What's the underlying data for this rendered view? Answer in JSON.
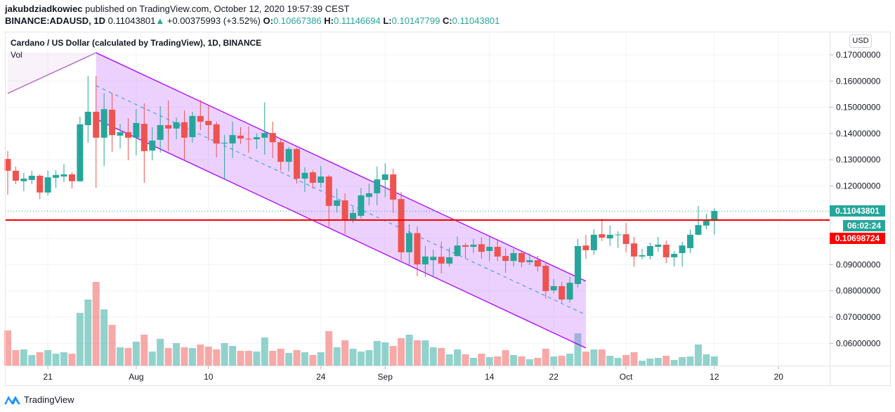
{
  "header": {
    "author": "jakubdziadkowiec",
    "published_text": "published on TradingView.com, October 12, 2020 19:57:39 CEST",
    "symbol": "BINANCE:ADAUSD, 1D",
    "last": "0.11043801",
    "change": "+0.00375993 (+3.52%)",
    "o_label": "O:",
    "o": "0.10667386",
    "h_label": "H:",
    "h": "0.11146694",
    "l_label": "L:",
    "l": "0.10147799",
    "c_label": "C:",
    "c": "0.11043801"
  },
  "legend": {
    "title": "Cardano / US Dollar (calculated by TradingView), 1D, BINANCE",
    "volume": "Vol"
  },
  "price_axis": {
    "currency": "USD",
    "last_price_label": "0.11043801",
    "countdown": "06:02:24",
    "line_price_label": "0.10698724"
  },
  "footer": {
    "brand": "TradingView"
  },
  "colors": {
    "up": "#26a69a",
    "down": "#ef5350",
    "channel": "#aa00ff",
    "hline": "#ff0000",
    "midline": "#2196f3"
  },
  "chart_data": {
    "type": "candlestick",
    "title": "Cardano / US Dollar (calculated by TradingView), 1D, BINANCE",
    "ylim": [
      0.055,
      0.175
    ],
    "y_ticks": [
      "0.17000000",
      "0.16000000",
      "0.15000000",
      "0.14000000",
      "0.13000000",
      "0.12000000",
      "0.09000000",
      "0.08000000",
      "0.07000000",
      "0.06000000"
    ],
    "y_tick_values": [
      0.17,
      0.16,
      0.15,
      0.14,
      0.13,
      0.12,
      0.09,
      0.08,
      0.07,
      0.06
    ],
    "x_ticks": [
      {
        "label": "21",
        "date": "2020-07-21"
      },
      {
        "label": "Aug",
        "date": "2020-08-01"
      },
      {
        "label": "10",
        "date": "2020-08-10"
      },
      {
        "label": "24",
        "date": "2020-08-24"
      },
      {
        "label": "Sep",
        "date": "2020-09-01"
      },
      {
        "label": "14",
        "date": "2020-09-14"
      },
      {
        "label": "22",
        "date": "2020-09-22"
      },
      {
        "label": "Oct",
        "date": "2020-10-01"
      },
      {
        "label": "12",
        "date": "2020-10-12"
      },
      {
        "label": "20",
        "date": "2020-10-20"
      }
    ],
    "grid": true,
    "volume_unit": "relative",
    "candles": [
      [
        "2020-07-16",
        0.1303,
        0.1333,
        0.1166,
        0.1258,
        50
      ],
      [
        "2020-07-17",
        0.1258,
        0.1274,
        0.1207,
        0.122,
        22
      ],
      [
        "2020-07-18",
        0.1218,
        0.125,
        0.118,
        0.1228,
        23
      ],
      [
        "2020-07-19",
        0.1223,
        0.1258,
        0.1207,
        0.1239,
        15
      ],
      [
        "2020-07-20",
        0.1239,
        0.1244,
        0.115,
        0.1175,
        19
      ],
      [
        "2020-07-21",
        0.1175,
        0.126,
        0.1164,
        0.1233,
        22
      ],
      [
        "2020-07-22",
        0.1231,
        0.126,
        0.1193,
        0.1242,
        17
      ],
      [
        "2020-07-23",
        0.1236,
        0.1284,
        0.1215,
        0.1244,
        19
      ],
      [
        "2020-07-24",
        0.1244,
        0.1252,
        0.119,
        0.1218,
        17
      ],
      [
        "2020-07-25",
        0.1218,
        0.1464,
        0.1215,
        0.1435,
        75
      ],
      [
        "2020-07-26",
        0.1432,
        0.162,
        0.1365,
        0.1483,
        94
      ],
      [
        "2020-07-27",
        0.1483,
        0.162,
        0.1193,
        0.1384,
        119
      ],
      [
        "2020-07-28",
        0.1384,
        0.1553,
        0.1276,
        0.1493,
        80
      ],
      [
        "2020-07-29",
        0.1491,
        0.1555,
        0.133,
        0.1394,
        58
      ],
      [
        "2020-07-30",
        0.1392,
        0.1437,
        0.1343,
        0.1405,
        26
      ],
      [
        "2020-07-31",
        0.1405,
        0.1459,
        0.1298,
        0.1384,
        25
      ],
      [
        "2020-08-01",
        0.1384,
        0.1494,
        0.1317,
        0.144,
        34
      ],
      [
        "2020-08-02",
        0.1437,
        0.1515,
        0.1212,
        0.1333,
        44
      ],
      [
        "2020-08-03",
        0.1335,
        0.1424,
        0.1298,
        0.1373,
        20
      ],
      [
        "2020-08-04",
        0.1376,
        0.1504,
        0.1327,
        0.1432,
        38
      ],
      [
        "2020-08-05",
        0.1432,
        0.1526,
        0.1333,
        0.1419,
        25
      ],
      [
        "2020-08-06",
        0.1419,
        0.1461,
        0.1378,
        0.1443,
        32
      ],
      [
        "2020-08-07",
        0.1443,
        0.1488,
        0.13,
        0.1384,
        26
      ],
      [
        "2020-08-08",
        0.1386,
        0.1483,
        0.1365,
        0.1467,
        25
      ],
      [
        "2020-08-09",
        0.1467,
        0.1528,
        0.1413,
        0.1445,
        30
      ],
      [
        "2020-08-10",
        0.1448,
        0.151,
        0.1373,
        0.1432,
        27
      ],
      [
        "2020-08-11",
        0.1435,
        0.1445,
        0.1309,
        0.1362,
        23
      ],
      [
        "2020-08-12",
        0.1362,
        0.1394,
        0.1225,
        0.1365,
        32
      ],
      [
        "2020-08-13",
        0.1362,
        0.1445,
        0.1306,
        0.1394,
        28
      ],
      [
        "2020-08-14",
        0.1392,
        0.1424,
        0.136,
        0.1381,
        21
      ],
      [
        "2020-08-15",
        0.138,
        0.1427,
        0.1327,
        0.1378,
        21
      ],
      [
        "2020-08-16",
        0.1378,
        0.14,
        0.1341,
        0.1386,
        20
      ],
      [
        "2020-08-17",
        0.1384,
        0.1518,
        0.1319,
        0.1402,
        40
      ],
      [
        "2020-08-18",
        0.1402,
        0.1445,
        0.1306,
        0.1367,
        21
      ],
      [
        "2020-08-19",
        0.1367,
        0.1381,
        0.1258,
        0.1292,
        24
      ],
      [
        "2020-08-20",
        0.1292,
        0.1349,
        0.1255,
        0.1341,
        18
      ],
      [
        "2020-08-21",
        0.1341,
        0.1346,
        0.1209,
        0.1228,
        22
      ],
      [
        "2020-08-22",
        0.1228,
        0.1271,
        0.1177,
        0.125,
        19
      ],
      [
        "2020-08-23",
        0.1252,
        0.126,
        0.119,
        0.1212,
        15
      ],
      [
        "2020-08-24",
        0.1212,
        0.1276,
        0.1193,
        0.1236,
        19
      ],
      [
        "2020-08-25",
        0.1236,
        0.1242,
        0.1038,
        0.1124,
        49
      ],
      [
        "2020-08-26",
        0.1124,
        0.119,
        0.1099,
        0.1145,
        26
      ],
      [
        "2020-08-27",
        0.1145,
        0.1172,
        0.1016,
        0.107,
        36
      ],
      [
        "2020-08-28",
        0.1073,
        0.1121,
        0.1059,
        0.1097,
        24
      ],
      [
        "2020-08-29",
        0.1086,
        0.1193,
        0.1075,
        0.1164,
        20
      ],
      [
        "2020-08-30",
        0.1158,
        0.1209,
        0.1126,
        0.1172,
        22
      ],
      [
        "2020-08-31",
        0.1172,
        0.1274,
        0.1126,
        0.1225,
        35
      ],
      [
        "2020-09-01",
        0.1223,
        0.1287,
        0.1158,
        0.1244,
        33
      ],
      [
        "2020-09-02",
        0.1244,
        0.1266,
        0.1097,
        0.1148,
        28
      ],
      [
        "2020-09-03",
        0.115,
        0.1177,
        0.0917,
        0.0947,
        39
      ],
      [
        "2020-09-04",
        0.0947,
        0.1054,
        0.0898,
        0.102,
        44
      ],
      [
        "2020-09-05",
        0.102,
        0.1046,
        0.0856,
        0.0901,
        36
      ],
      [
        "2020-09-06",
        0.0901,
        0.0971,
        0.0853,
        0.0931,
        36
      ],
      [
        "2020-09-07",
        0.0917,
        0.0957,
        0.0856,
        0.093,
        26
      ],
      [
        "2020-09-08",
        0.093,
        0.0987,
        0.0866,
        0.0904,
        25
      ],
      [
        "2020-09-09",
        0.0904,
        0.0965,
        0.0893,
        0.0928,
        16
      ],
      [
        "2020-09-10",
        0.0933,
        0.1008,
        0.093,
        0.0973,
        23
      ],
      [
        "2020-09-11",
        0.0974,
        0.0982,
        0.0925,
        0.0968,
        16
      ],
      [
        "2020-09-12",
        0.0968,
        0.0998,
        0.0944,
        0.0976,
        11
      ],
      [
        "2020-09-13",
        0.0978,
        0.1003,
        0.0922,
        0.0949,
        17
      ],
      [
        "2020-09-14",
        0.0952,
        0.1006,
        0.0914,
        0.0968,
        12
      ],
      [
        "2020-09-15",
        0.0968,
        0.0998,
        0.0914,
        0.0931,
        13
      ],
      [
        "2020-09-16",
        0.0933,
        0.0962,
        0.0869,
        0.0914,
        22
      ],
      [
        "2020-09-17",
        0.0914,
        0.096,
        0.0893,
        0.0944,
        15
      ],
      [
        "2020-09-18",
        0.0944,
        0.0949,
        0.089,
        0.0909,
        13
      ],
      [
        "2020-09-19",
        0.0909,
        0.0944,
        0.0898,
        0.0917,
        9
      ],
      [
        "2020-09-20",
        0.0917,
        0.0933,
        0.0874,
        0.0893,
        11
      ],
      [
        "2020-09-21",
        0.0896,
        0.0909,
        0.077,
        0.0799,
        24
      ],
      [
        "2020-09-22",
        0.0802,
        0.0845,
        0.0791,
        0.0818,
        13
      ],
      [
        "2020-09-23",
        0.0818,
        0.0834,
        0.0756,
        0.0767,
        14
      ],
      [
        "2020-09-24",
        0.0767,
        0.0853,
        0.0756,
        0.0831,
        17
      ],
      [
        "2020-09-25",
        0.0826,
        0.0998,
        0.0813,
        0.0971,
        46
      ],
      [
        "2020-09-26",
        0.0973,
        0.1014,
        0.0922,
        0.0955,
        20
      ],
      [
        "2020-09-27",
        0.0955,
        0.1035,
        0.0938,
        0.1014,
        23
      ],
      [
        "2020-09-28",
        0.1016,
        0.1075,
        0.099,
        0.1003,
        23
      ],
      [
        "2020-09-29",
        0.1,
        0.1049,
        0.0971,
        0.1014,
        14
      ],
      [
        "2020-09-30",
        0.1014,
        0.1027,
        0.0963,
        0.1015,
        11
      ],
      [
        "2020-10-01",
        0.1016,
        0.1059,
        0.0947,
        0.0979,
        15
      ],
      [
        "2020-10-02",
        0.0981,
        0.1006,
        0.0893,
        0.0931,
        19
      ],
      [
        "2020-10-03",
        0.0931,
        0.096,
        0.092,
        0.0936,
        7
      ],
      [
        "2020-10-04",
        0.0933,
        0.0984,
        0.092,
        0.0971,
        10
      ],
      [
        "2020-10-05",
        0.0968,
        0.1006,
        0.0949,
        0.0976,
        11
      ],
      [
        "2020-10-06",
        0.0976,
        0.0992,
        0.0906,
        0.0928,
        14
      ],
      [
        "2020-10-07",
        0.0928,
        0.0952,
        0.0893,
        0.0941,
        8
      ],
      [
        "2020-10-08",
        0.0944,
        0.0987,
        0.0893,
        0.0973,
        12
      ],
      [
        "2020-10-09",
        0.0963,
        0.1033,
        0.0944,
        0.1014,
        13
      ],
      [
        "2020-10-10",
        0.1014,
        0.1124,
        0.1011,
        0.1051,
        30
      ],
      [
        "2020-10-11",
        0.1049,
        0.1094,
        0.1035,
        0.1067,
        16
      ],
      [
        "2020-10-12",
        0.10667386,
        0.11146694,
        0.10147799,
        0.11043801,
        13
      ]
    ],
    "annotations": {
      "horizontal_line": 0.10698724,
      "last_price_line": 0.11043801,
      "channel": {
        "upper": [
          [
            "2020-07-27",
            0.1708
          ],
          [
            "2020-09-26",
            0.0837
          ]
        ],
        "middle": [
          [
            "2020-07-27",
            0.1582
          ],
          [
            "2020-09-26",
            0.0709
          ]
        ],
        "lower": [
          [
            "2020-07-27",
            0.1455
          ],
          [
            "2020-09-26",
            0.0582
          ]
        ]
      },
      "trend_line": [
        [
          "2020-07-16",
          0.1553
        ],
        [
          "2020-07-27",
          0.1708
        ]
      ]
    }
  }
}
